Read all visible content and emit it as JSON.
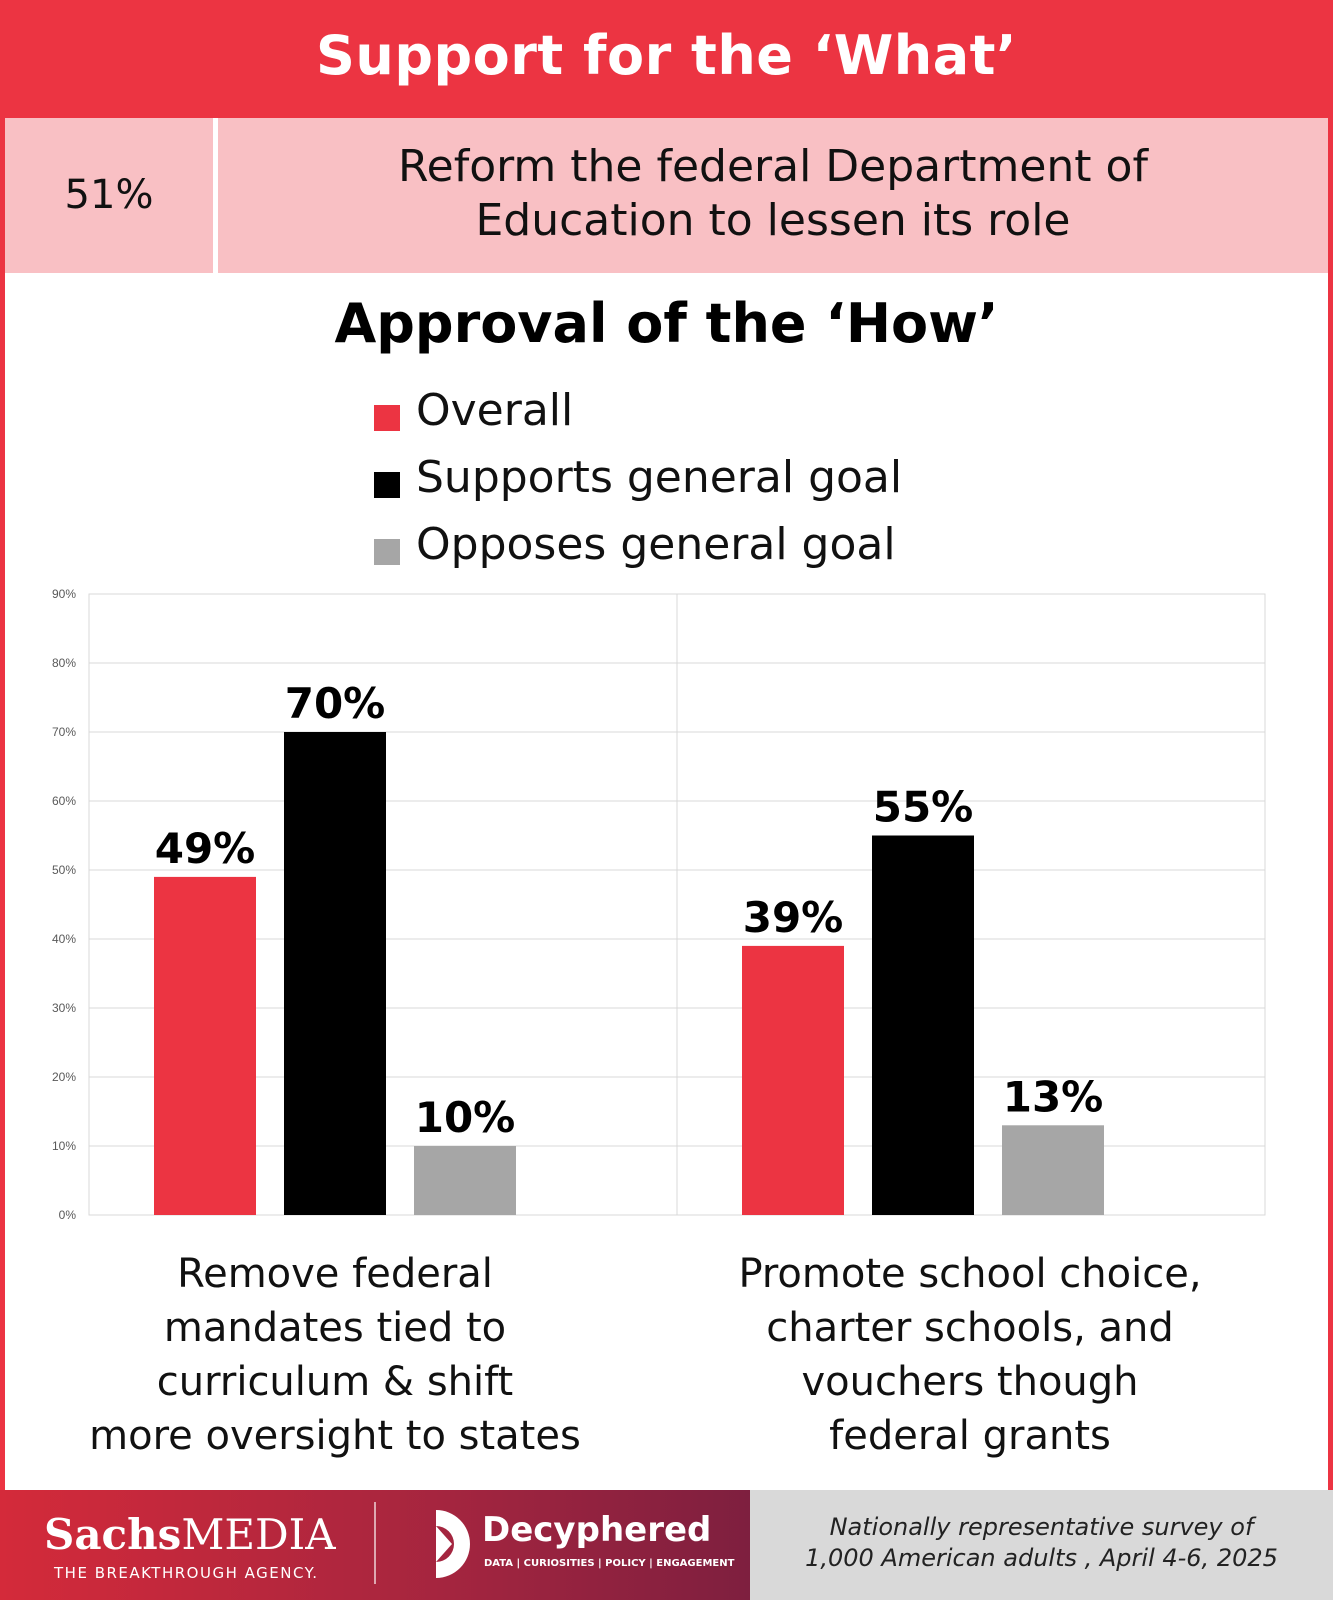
{
  "header": {
    "title": "Support for the ‘What’"
  },
  "what": {
    "percent": "51%",
    "statement_lines": [
      "Reform the federal Department of",
      "Education to lessen its role"
    ]
  },
  "how": {
    "title": "Approval of the ‘How’"
  },
  "legend": [
    {
      "label": "Overall",
      "color": "#ec3442"
    },
    {
      "label": "Supports general goal",
      "color": "#000000"
    },
    {
      "label": "Opposes general goal",
      "color": "#a6a6a6"
    }
  ],
  "chart_data": {
    "type": "bar",
    "title": "Approval of the ‘How’",
    "categories": [
      "Remove federal mandates tied to curriculum & shift more oversight to states",
      "Promote school choice, charter schools, and vouchers though federal grants"
    ],
    "category_label_lines": [
      [
        "Remove federal",
        "mandates tied to",
        "curriculum & shift",
        "more oversight to states"
      ],
      [
        "Promote school choice,",
        "charter schools, and",
        "vouchers though",
        "federal grants"
      ]
    ],
    "series": [
      {
        "name": "Overall",
        "color": "#ec3442",
        "values": [
          49,
          39
        ],
        "labels": [
          "49%",
          "39%"
        ]
      },
      {
        "name": "Supports general goal",
        "color": "#000000",
        "values": [
          70,
          55
        ],
        "labels": [
          "70%",
          "55%"
        ]
      },
      {
        "name": "Opposes general goal",
        "color": "#a6a6a6",
        "values": [
          10,
          13
        ],
        "labels": [
          "10%",
          "13%"
        ]
      }
    ],
    "yticks": [
      "0%",
      "10%",
      "20%",
      "30%",
      "40%",
      "50%",
      "60%",
      "70%",
      "80%",
      "90%"
    ],
    "ylim": [
      0,
      90
    ],
    "xlabel": "",
    "ylabel": "",
    "grid": true,
    "legend_position": "top"
  },
  "footer": {
    "brand_sachs_bold": "Sachs",
    "brand_sachs_light": "MEDIA",
    "brand_sachs_tagline": "THE BREAKTHROUGH AGENCY.",
    "brand_decyphered": "Decyphered",
    "brand_decyphered_tagline": "DATA | CURIOSITIES | POLICY | ENGAGEMENT",
    "survey_lines": [
      "Nationally representative survey of",
      "1,000 American adults , April 4-6, 2025"
    ]
  }
}
